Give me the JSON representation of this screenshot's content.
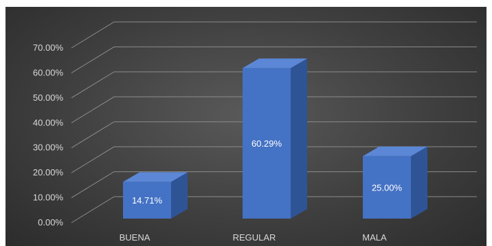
{
  "chart_data": {
    "type": "bar",
    "style": "3d-column",
    "categories": [
      "BUENA",
      "REGULAR",
      "MALA"
    ],
    "values": [
      14.71,
      60.29,
      25.0
    ],
    "data_labels": [
      "14.71%",
      "60.29%",
      "25.00%"
    ],
    "ylim": [
      0,
      70
    ],
    "yticks": [
      0,
      10,
      20,
      30,
      40,
      50,
      60,
      70
    ],
    "ytick_labels": [
      "0.00%",
      "10.00%",
      "20.00%",
      "30.00%",
      "40.00%",
      "50.00%",
      "60.00%",
      "70.00%"
    ],
    "grid": true,
    "legend": "none",
    "colors": {
      "bar_front": "#4472c4",
      "bar_side": "#2f5496",
      "bar_top": "#5b87d6",
      "gridline": "#8c8c8c",
      "text": "#d9d9d9",
      "background": "#404040"
    }
  }
}
